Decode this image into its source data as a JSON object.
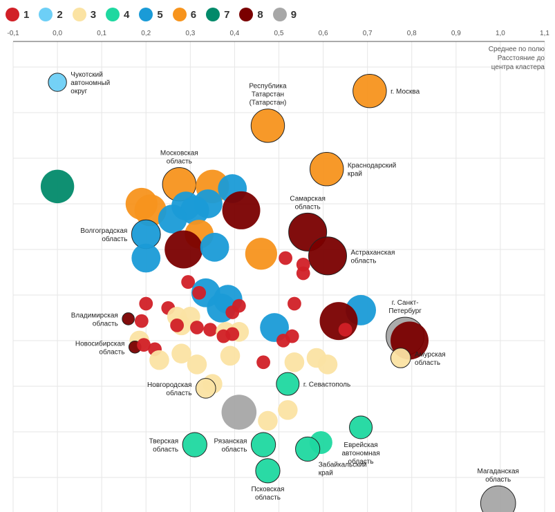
{
  "legend": [
    {
      "label": "1",
      "color": "#d12027"
    },
    {
      "label": "2",
      "color": "#6dcff6"
    },
    {
      "label": "3",
      "color": "#fbe3a3"
    },
    {
      "label": "4",
      "color": "#1fd8a0"
    },
    {
      "label": "5",
      "color": "#1a9bd7"
    },
    {
      "label": "6",
      "color": "#f7941d"
    },
    {
      "label": "7",
      "color": "#028a6a"
    },
    {
      "label": "8",
      "color": "#7a0000"
    },
    {
      "label": "9",
      "color": "#a7a7a7"
    }
  ],
  "axis_note": [
    "Среднее по полю",
    "Расстояние до",
    "центра кластера"
  ],
  "chart_data": {
    "type": "scatter",
    "title": "",
    "xlabel": "Среднее по полю Расстояние до центра кластера",
    "xlim": [
      -0.1,
      1.1
    ],
    "ylim": [
      0,
      11
    ],
    "xticks": [
      "-0,1",
      "0,0",
      "0,1",
      "0,2",
      "0,3",
      "0,4",
      "0,5",
      "0,6",
      "0,7",
      "0,8",
      "0,9",
      "1,0",
      "1,1"
    ],
    "size_scale": "bubble radius encodes distance to cluster center",
    "points": [
      {
        "x": 0.0,
        "y": 9.9,
        "r": 1.2,
        "cluster": 2,
        "label": [
          "Чукотский",
          "автономный",
          "округ"
        ],
        "anchor": "right"
      },
      {
        "x": 0.475,
        "y": 8.9,
        "r": 2.2,
        "cluster": 6,
        "label": [
          "Республика",
          "Татарстан",
          "(Татарстан)"
        ],
        "anchor": "top"
      },
      {
        "x": 0.705,
        "y": 9.7,
        "r": 2.2,
        "cluster": 6,
        "label": [
          "г. Москва"
        ],
        "anchor": "right"
      },
      {
        "x": 0.608,
        "y": 7.9,
        "r": 2.2,
        "cluster": 6,
        "label": [
          "Краснодарский",
          "край"
        ],
        "anchor": "right"
      },
      {
        "x": 0.0,
        "y": 7.5,
        "r": 2.2,
        "cluster": 7
      },
      {
        "x": 0.275,
        "y": 7.55,
        "r": 2.2,
        "cluster": 6,
        "label": [
          "Московская",
          "область"
        ],
        "anchor": "top"
      },
      {
        "x": 0.35,
        "y": 7.5,
        "r": 2.2,
        "cluster": 6
      },
      {
        "x": 0.395,
        "y": 7.45,
        "r": 1.9,
        "cluster": 5
      },
      {
        "x": 0.19,
        "y": 7.1,
        "r": 2.1,
        "cluster": 6
      },
      {
        "x": 0.21,
        "y": 6.95,
        "r": 2.1,
        "cluster": 6
      },
      {
        "x": 0.29,
        "y": 7.05,
        "r": 1.9,
        "cluster": 5
      },
      {
        "x": 0.34,
        "y": 7.1,
        "r": 1.9,
        "cluster": 5
      },
      {
        "x": 0.31,
        "y": 6.95,
        "r": 1.9,
        "cluster": 5
      },
      {
        "x": 0.415,
        "y": 6.95,
        "r": 2.5,
        "cluster": 8
      },
      {
        "x": 0.26,
        "y": 6.75,
        "r": 1.9,
        "cluster": 5
      },
      {
        "x": 0.2,
        "y": 6.4,
        "r": 1.9,
        "cluster": 5,
        "label": [
          "Волгоградская",
          "область"
        ],
        "anchor": "left"
      },
      {
        "x": 0.2,
        "y": 5.85,
        "r": 1.9,
        "cluster": 5
      },
      {
        "x": 0.32,
        "y": 6.4,
        "r": 1.9,
        "cluster": 6
      },
      {
        "x": 0.285,
        "y": 6.05,
        "r": 2.5,
        "cluster": 8
      },
      {
        "x": 0.355,
        "y": 6.1,
        "r": 1.9,
        "cluster": 5
      },
      {
        "x": 0.46,
        "y": 5.95,
        "r": 2.1,
        "cluster": 6
      },
      {
        "x": 0.565,
        "y": 6.45,
        "r": 2.5,
        "cluster": 8,
        "label": [
          "Самарская",
          "область"
        ],
        "anchor": "top"
      },
      {
        "x": 0.61,
        "y": 5.9,
        "r": 2.5,
        "cluster": 8,
        "label": [
          "Астраханская",
          "область"
        ],
        "anchor": "right"
      },
      {
        "x": 0.515,
        "y": 5.85,
        "r": 0.9,
        "cluster": 1
      },
      {
        "x": 0.555,
        "y": 5.7,
        "r": 0.9,
        "cluster": 1
      },
      {
        "x": 0.555,
        "y": 5.5,
        "r": 0.9,
        "cluster": 1
      },
      {
        "x": 0.295,
        "y": 5.3,
        "r": 0.9,
        "cluster": 1
      },
      {
        "x": 0.335,
        "y": 5.05,
        "r": 1.9,
        "cluster": 5
      },
      {
        "x": 0.32,
        "y": 5.05,
        "r": 0.9,
        "cluster": 1
      },
      {
        "x": 0.37,
        "y": 4.7,
        "r": 1.9,
        "cluster": 5
      },
      {
        "x": 0.385,
        "y": 4.9,
        "r": 1.9,
        "cluster": 5
      },
      {
        "x": 0.2,
        "y": 4.8,
        "r": 0.9,
        "cluster": 1
      },
      {
        "x": 0.25,
        "y": 4.7,
        "r": 0.9,
        "cluster": 1
      },
      {
        "x": 0.41,
        "y": 4.75,
        "r": 0.9,
        "cluster": 1
      },
      {
        "x": 0.395,
        "y": 4.6,
        "r": 0.9,
        "cluster": 1
      },
      {
        "x": 0.535,
        "y": 4.8,
        "r": 0.9,
        "cluster": 1
      },
      {
        "x": 0.685,
        "y": 4.65,
        "r": 2.0,
        "cluster": 5
      },
      {
        "x": 0.635,
        "y": 4.4,
        "r": 2.5,
        "cluster": 8
      },
      {
        "x": 0.65,
        "y": 4.2,
        "r": 0.9,
        "cluster": 1
      },
      {
        "x": 0.16,
        "y": 4.45,
        "r": 0.8,
        "cluster": 8,
        "label": [
          "Владимирская",
          "область"
        ],
        "anchor": "left"
      },
      {
        "x": 0.19,
        "y": 4.4,
        "r": 0.9,
        "cluster": 1
      },
      {
        "x": 0.27,
        "y": 4.5,
        "r": 1.3,
        "cluster": 3
      },
      {
        "x": 0.28,
        "y": 4.3,
        "r": 1.3,
        "cluster": 3
      },
      {
        "x": 0.3,
        "y": 4.5,
        "r": 1.3,
        "cluster": 3
      },
      {
        "x": 0.27,
        "y": 4.3,
        "r": 0.9,
        "cluster": 1
      },
      {
        "x": 0.315,
        "y": 4.25,
        "r": 0.9,
        "cluster": 1
      },
      {
        "x": 0.345,
        "y": 4.2,
        "r": 0.9,
        "cluster": 1
      },
      {
        "x": 0.38,
        "y": 4.15,
        "r": 1.3,
        "cluster": 3
      },
      {
        "x": 0.41,
        "y": 4.15,
        "r": 1.3,
        "cluster": 3
      },
      {
        "x": 0.395,
        "y": 4.1,
        "r": 0.9,
        "cluster": 1
      },
      {
        "x": 0.375,
        "y": 4.05,
        "r": 0.9,
        "cluster": 1
      },
      {
        "x": 0.49,
        "y": 4.25,
        "r": 1.9,
        "cluster": 5
      },
      {
        "x": 0.53,
        "y": 4.05,
        "r": 0.9,
        "cluster": 1
      },
      {
        "x": 0.51,
        "y": 3.95,
        "r": 0.9,
        "cluster": 1
      },
      {
        "x": 0.785,
        "y": 4.05,
        "r": 2.5,
        "cluster": 9,
        "label": [
          "г. Санкт-",
          "Петербург"
        ],
        "anchor": "top"
      },
      {
        "x": 0.795,
        "y": 3.95,
        "r": 2.5,
        "cluster": 8
      },
      {
        "x": 0.775,
        "y": 3.55,
        "r": 1.3,
        "cluster": 3,
        "label": [
          "Амурская",
          "область"
        ],
        "anchor": "right"
      },
      {
        "x": 0.185,
        "y": 3.95,
        "r": 1.3,
        "cluster": 3
      },
      {
        "x": 0.175,
        "y": 3.8,
        "r": 0.8,
        "cluster": 8,
        "label": [
          "Новосибирская",
          "область"
        ],
        "anchor": "left"
      },
      {
        "x": 0.195,
        "y": 3.85,
        "r": 0.9,
        "cluster": 1
      },
      {
        "x": 0.22,
        "y": 3.75,
        "r": 0.9,
        "cluster": 1
      },
      {
        "x": 0.23,
        "y": 3.5,
        "r": 1.3,
        "cluster": 3
      },
      {
        "x": 0.28,
        "y": 3.65,
        "r": 1.3,
        "cluster": 3
      },
      {
        "x": 0.315,
        "y": 3.4,
        "r": 1.3,
        "cluster": 3
      },
      {
        "x": 0.39,
        "y": 3.6,
        "r": 1.3,
        "cluster": 3
      },
      {
        "x": 0.465,
        "y": 3.45,
        "r": 0.9,
        "cluster": 1
      },
      {
        "x": 0.535,
        "y": 3.45,
        "r": 1.3,
        "cluster": 3
      },
      {
        "x": 0.585,
        "y": 3.55,
        "r": 1.3,
        "cluster": 3
      },
      {
        "x": 0.61,
        "y": 3.4,
        "r": 1.3,
        "cluster": 3
      },
      {
        "x": 0.35,
        "y": 2.95,
        "r": 1.3,
        "cluster": 3
      },
      {
        "x": 0.335,
        "y": 2.85,
        "r": 1.3,
        "cluster": 3,
        "label": [
          "Новгородская",
          "область"
        ],
        "anchor": "left"
      },
      {
        "x": 0.52,
        "y": 2.95,
        "r": 1.5,
        "cluster": 4,
        "label": [
          "г. Севастополь"
        ],
        "anchor": "right"
      },
      {
        "x": 0.41,
        "y": 2.3,
        "r": 2.3,
        "cluster": 9
      },
      {
        "x": 0.52,
        "y": 2.35,
        "r": 1.3,
        "cluster": 3
      },
      {
        "x": 0.475,
        "y": 2.1,
        "r": 1.3,
        "cluster": 3
      },
      {
        "x": 0.685,
        "y": 1.95,
        "r": 1.5,
        "cluster": 4,
        "label": [
          "Еврейская",
          "автономная",
          "область"
        ],
        "anchor": "bottom"
      },
      {
        "x": 0.595,
        "y": 1.6,
        "r": 1.5,
        "cluster": 4
      },
      {
        "x": 0.31,
        "y": 1.55,
        "r": 1.6,
        "cluster": 4,
        "label": [
          "Тверская",
          "область"
        ],
        "anchor": "left"
      },
      {
        "x": 0.465,
        "y": 1.55,
        "r": 1.6,
        "cluster": 4,
        "label": [
          "Рязанская",
          "область"
        ],
        "anchor": "left"
      },
      {
        "x": 0.565,
        "y": 1.45,
        "r": 1.6,
        "cluster": 4,
        "label": [
          "Забайкальский",
          "край"
        ],
        "anchor": "bottom-left"
      },
      {
        "x": 0.475,
        "y": 0.95,
        "r": 1.6,
        "cluster": 4,
        "label": [
          "Псковская",
          "область"
        ],
        "anchor": "bottom"
      },
      {
        "x": 0.995,
        "y": 0.2,
        "r": 2.3,
        "cluster": 9,
        "label": [
          "Магаданская",
          "область"
        ],
        "anchor": "top"
      }
    ]
  }
}
